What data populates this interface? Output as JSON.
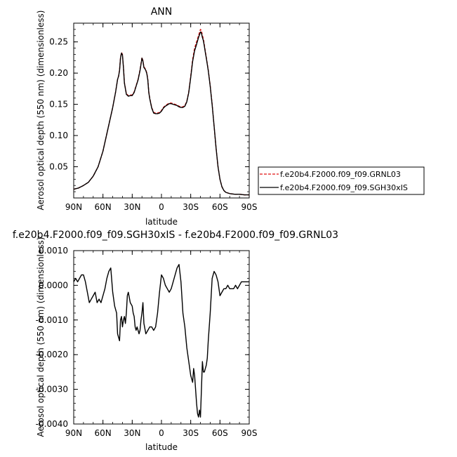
{
  "chart_data": [
    {
      "type": "line",
      "title": "ANN",
      "xlabel": "latitude",
      "ylabel": "Aerosol optical depth (550 nm) (dimensionless)",
      "xlim": [
        90,
        -90
      ],
      "ylim": [
        0,
        0.28
      ],
      "x_ticks": [
        90,
        60,
        30,
        0,
        -30,
        -60,
        -90
      ],
      "x_tick_labels": [
        "90N",
        "60N",
        "30N",
        "0",
        "30S",
        "60S",
        "90S"
      ],
      "y_ticks": [
        0.05,
        0.1,
        0.15,
        0.2,
        0.25
      ],
      "y_tick_labels": [
        "0.05",
        "0.10",
        "0.15",
        "0.20",
        "0.25"
      ],
      "legend": "outside-right",
      "series": [
        {
          "name": "f.e20b4.F2000.f09_f09.GRNL03",
          "color": "#e01010",
          "dash": "dashed",
          "x": [
            90,
            85,
            80,
            75,
            70,
            65,
            60,
            55,
            50,
            47,
            45,
            44,
            43,
            42,
            41,
            40,
            39,
            38,
            36,
            34,
            32,
            30,
            28,
            26,
            24,
            22,
            21,
            20,
            19,
            18,
            17,
            16,
            15,
            14,
            13,
            12,
            10,
            8,
            6,
            4,
            2,
            0,
            -2,
            -4,
            -6,
            -8,
            -10,
            -12,
            -14,
            -16,
            -18,
            -20,
            -22,
            -24,
            -26,
            -28,
            -30,
            -32,
            -34,
            -36,
            -38,
            -40,
            -41,
            -42,
            -43,
            -44,
            -45,
            -46,
            -47,
            -48,
            -50,
            -52,
            -54,
            -56,
            -58,
            -60,
            -62,
            -64,
            -66,
            -68,
            -70,
            -75,
            -80,
            -85,
            -90
          ],
          "y": [
            0.014,
            0.016,
            0.02,
            0.025,
            0.035,
            0.05,
            0.075,
            0.11,
            0.145,
            0.17,
            0.19,
            0.195,
            0.205,
            0.225,
            0.233,
            0.23,
            0.21,
            0.185,
            0.167,
            0.164,
            0.165,
            0.165,
            0.17,
            0.18,
            0.19,
            0.205,
            0.215,
            0.225,
            0.22,
            0.21,
            0.208,
            0.205,
            0.2,
            0.19,
            0.17,
            0.16,
            0.145,
            0.137,
            0.136,
            0.136,
            0.137,
            0.14,
            0.145,
            0.148,
            0.15,
            0.152,
            0.152,
            0.151,
            0.15,
            0.149,
            0.147,
            0.146,
            0.146,
            0.148,
            0.155,
            0.17,
            0.195,
            0.222,
            0.24,
            0.25,
            0.26,
            0.27,
            0.268,
            0.26,
            0.255,
            0.245,
            0.235,
            0.225,
            0.215,
            0.205,
            0.18,
            0.15,
            0.115,
            0.08,
            0.05,
            0.03,
            0.018,
            0.012,
            0.009,
            0.008,
            0.007,
            0.006,
            0.006,
            0.005,
            0.005
          ]
        },
        {
          "name": "f.e20b4.F2000.f09_f09.SGH30xIS",
          "color": "#000000",
          "dash": "solid",
          "x": [
            90,
            85,
            80,
            75,
            70,
            65,
            60,
            55,
            50,
            47,
            45,
            44,
            43,
            42,
            41,
            40,
            39,
            38,
            36,
            34,
            32,
            30,
            28,
            26,
            24,
            22,
            21,
            20,
            19,
            18,
            17,
            16,
            15,
            14,
            13,
            12,
            10,
            8,
            6,
            4,
            2,
            0,
            -2,
            -4,
            -6,
            -8,
            -10,
            -12,
            -14,
            -16,
            -18,
            -20,
            -22,
            -24,
            -26,
            -28,
            -30,
            -32,
            -34,
            -36,
            -38,
            -40,
            -41,
            -42,
            -43,
            -44,
            -45,
            -46,
            -47,
            -48,
            -50,
            -52,
            -54,
            -56,
            -58,
            -60,
            -62,
            -64,
            -66,
            -68,
            -70,
            -75,
            -80,
            -85,
            -90
          ],
          "y": [
            0.014,
            0.016,
            0.02,
            0.025,
            0.035,
            0.05,
            0.075,
            0.11,
            0.145,
            0.17,
            0.19,
            0.195,
            0.204,
            0.224,
            0.232,
            0.229,
            0.209,
            0.184,
            0.166,
            0.163,
            0.164,
            0.164,
            0.169,
            0.179,
            0.189,
            0.204,
            0.214,
            0.224,
            0.219,
            0.209,
            0.207,
            0.204,
            0.199,
            0.189,
            0.169,
            0.159,
            0.144,
            0.136,
            0.135,
            0.135,
            0.136,
            0.139,
            0.144,
            0.147,
            0.149,
            0.151,
            0.151,
            0.15,
            0.149,
            0.148,
            0.146,
            0.145,
            0.145,
            0.147,
            0.154,
            0.169,
            0.193,
            0.219,
            0.236,
            0.246,
            0.257,
            0.266,
            0.264,
            0.257,
            0.252,
            0.243,
            0.233,
            0.224,
            0.214,
            0.204,
            0.179,
            0.149,
            0.115,
            0.08,
            0.05,
            0.03,
            0.018,
            0.012,
            0.009,
            0.008,
            0.007,
            0.006,
            0.006,
            0.005,
            0.005
          ]
        }
      ]
    },
    {
      "type": "line",
      "title": "f.e20b4.F2000.f09_f09.SGH30xIS - f.e20b4.F2000.f09_f09.GRNL03",
      "xlabel": "latitude",
      "ylabel": "Aerosol optical depth (550 nm) (dimensionless)",
      "xlim": [
        90,
        -90
      ],
      "ylim": [
        -0.004,
        0.001
      ],
      "x_ticks": [
        90,
        60,
        30,
        0,
        -30,
        -60,
        -90
      ],
      "x_tick_labels": [
        "90N",
        "60N",
        "30N",
        "0",
        "30S",
        "60S",
        "90S"
      ],
      "y_ticks": [
        0.001,
        0.0,
        -0.001,
        -0.002,
        -0.003,
        -0.004
      ],
      "y_tick_labels": [
        "0.0010",
        "0.0000",
        "-0.0010",
        "-0.0020",
        "-0.0030",
        "-0.0040"
      ],
      "series": [
        {
          "color": "#000000",
          "dash": "solid",
          "x": [
            90,
            88,
            86,
            84,
            82,
            80,
            78,
            76,
            74,
            72,
            70,
            68,
            66,
            64,
            62,
            60,
            58,
            56,
            54,
            52,
            50,
            48,
            46,
            45,
            44,
            43,
            42,
            41,
            40,
            39,
            38,
            37,
            36,
            35,
            34,
            32,
            30,
            29,
            28,
            27,
            26,
            25,
            24,
            23,
            22,
            21,
            20,
            19,
            18,
            16,
            14,
            12,
            10,
            8,
            6,
            4,
            2,
            0,
            -2,
            -4,
            -6,
            -8,
            -10,
            -12,
            -14,
            -16,
            -18,
            -20,
            -22,
            -23,
            -24,
            -25,
            -26,
            -27,
            -28,
            -29,
            -30,
            -31,
            -32,
            -33,
            -34,
            -35,
            -36,
            -37,
            -38,
            -39,
            -40,
            -41,
            -42,
            -43,
            -44,
            -45,
            -46,
            -47,
            -48,
            -50,
            -52,
            -54,
            -56,
            -58,
            -60,
            -62,
            -64,
            -66,
            -68,
            -70,
            -72,
            -74,
            -76,
            -78,
            -80,
            -82,
            -84,
            -86,
            -88,
            -90
          ],
          "y": [
            0.0001,
            0.0002,
            0.0001,
            0.0002,
            0.0003,
            0.0003,
            0.0001,
            -0.0002,
            -0.0005,
            -0.0004,
            -0.0003,
            -0.0002,
            -0.0005,
            -0.0004,
            -0.0005,
            -0.0003,
            -0.0001,
            0.0002,
            0.0004,
            0.0005,
            -0.0002,
            -0.0006,
            -0.0008,
            -0.0014,
            -0.0015,
            -0.0016,
            -0.001,
            -0.0009,
            -0.0012,
            -0.001,
            -0.0009,
            -0.0011,
            -0.0008,
            -0.0003,
            -0.0002,
            -0.0005,
            -0.0006,
            -0.0008,
            -0.0009,
            -0.0012,
            -0.0013,
            -0.0012,
            -0.0013,
            -0.0014,
            -0.0013,
            -0.001,
            -0.0008,
            -0.0005,
            -0.0011,
            -0.0014,
            -0.0013,
            -0.0012,
            -0.0012,
            -0.0013,
            -0.0012,
            -0.0008,
            -0.0002,
            0.0003,
            0.0002,
            0.0,
            -0.0001,
            -0.0002,
            -0.0001,
            0.0001,
            0.0003,
            0.0005,
            0.0006,
            0.0001,
            -0.0008,
            -0.001,
            -0.0012,
            -0.0015,
            -0.0018,
            -0.002,
            -0.0022,
            -0.0024,
            -0.0026,
            -0.0027,
            -0.0028,
            -0.0024,
            -0.0026,
            -0.003,
            -0.0034,
            -0.0037,
            -0.0038,
            -0.0036,
            -0.0038,
            -0.003,
            -0.0022,
            -0.0025,
            -0.0025,
            -0.0024,
            -0.0023,
            -0.0021,
            -0.0016,
            -0.0008,
            0.0002,
            0.0004,
            0.0003,
            0.0001,
            -0.0003,
            -0.0002,
            -0.0001,
            -0.0001,
            0.0,
            -0.0001,
            -0.0001,
            -0.0001,
            0.0,
            -0.0001,
            0.0,
            0.0001,
            0.0001,
            0.0001,
            0.0001,
            0.0001
          ]
        }
      ]
    }
  ]
}
